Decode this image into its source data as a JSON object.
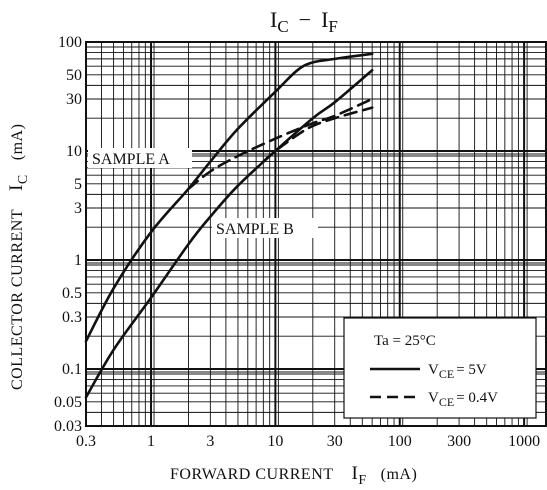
{
  "chart_data": {
    "type": "line",
    "title": "IC − IF",
    "title_main": "I",
    "title_sub1": "C",
    "title_dash": "−",
    "title_main2": "I",
    "title_sub2": "F",
    "xlabel": "FORWARD CURRENT",
    "xlabel_sym": "I",
    "xlabel_sub": "F",
    "xlabel_unit": "(mA)",
    "ylabel": "COLLECTOR CURRENT",
    "ylabel_sym": "I",
    "ylabel_sub": "C",
    "ylabel_unit": "(mA)",
    "x_scale": "log",
    "y_scale": "log",
    "xlim": [
      0.3,
      1500
    ],
    "ylim": [
      0.03,
      100
    ],
    "x_ticks": [
      {
        "value": 0.3,
        "label": "0.3"
      },
      {
        "value": 1,
        "label": "1"
      },
      {
        "value": 3,
        "label": "3"
      },
      {
        "value": 10,
        "label": "10"
      },
      {
        "value": 30,
        "label": "30"
      },
      {
        "value": 100,
        "label": "100"
      },
      {
        "value": 300,
        "label": "300"
      },
      {
        "value": 1000,
        "label": "1000"
      }
    ],
    "y_ticks": [
      {
        "value": 100,
        "label": "100"
      },
      {
        "value": 50,
        "label": "50"
      },
      {
        "value": 30,
        "label": "30"
      },
      {
        "value": 10,
        "label": "10"
      },
      {
        "value": 5,
        "label": "5"
      },
      {
        "value": 3,
        "label": "3"
      },
      {
        "value": 1,
        "label": "1"
      },
      {
        "value": 0.5,
        "label": "0.5"
      },
      {
        "value": 0.3,
        "label": "0.3"
      },
      {
        "value": 0.1,
        "label": "0.1"
      },
      {
        "value": 0.05,
        "label": "0.05"
      },
      {
        "value": 0.03,
        "label": "0.03"
      }
    ],
    "grid": true,
    "series": [
      {
        "sample": "A",
        "condition": "VCE=5V",
        "style": "solid",
        "x": [
          0.3,
          0.5,
          1,
          2,
          3,
          5,
          10,
          15,
          20,
          30,
          60
        ],
        "y": [
          0.18,
          0.55,
          1.8,
          4.5,
          8,
          16,
          35,
          55,
          65,
          70,
          78
        ]
      },
      {
        "sample": "A",
        "condition": "VCE=0.4V",
        "style": "dashed",
        "x": [
          2,
          3,
          5,
          10,
          20,
          30,
          60
        ],
        "y": [
          4.5,
          6.5,
          9,
          13,
          18,
          21,
          30
        ]
      },
      {
        "sample": "B",
        "condition": "VCE=5V",
        "style": "solid",
        "x": [
          0.3,
          0.5,
          1,
          2,
          3,
          5,
          10,
          20,
          30,
          60
        ],
        "y": [
          0.055,
          0.15,
          0.45,
          1.4,
          2.5,
          4.8,
          10,
          20,
          28,
          55
        ]
      },
      {
        "sample": "B",
        "condition": "VCE=0.4V",
        "style": "dashed",
        "x": [
          8,
          10,
          15,
          20,
          30,
          60
        ],
        "y": [
          8,
          10,
          14,
          17,
          20,
          25
        ]
      }
    ],
    "annotations": [
      {
        "text": "SAMPLE A"
      },
      {
        "text": "SAMPLE B"
      }
    ],
    "legend": {
      "placement": "bottom-right",
      "condition": "Ta = 25°C",
      "entries": [
        {
          "style": "solid",
          "sym": "V",
          "sub": "CE",
          "value": "= 5V"
        },
        {
          "style": "dashed",
          "sym": "V",
          "sub": "CE",
          "value": "= 0.4V"
        }
      ]
    }
  }
}
